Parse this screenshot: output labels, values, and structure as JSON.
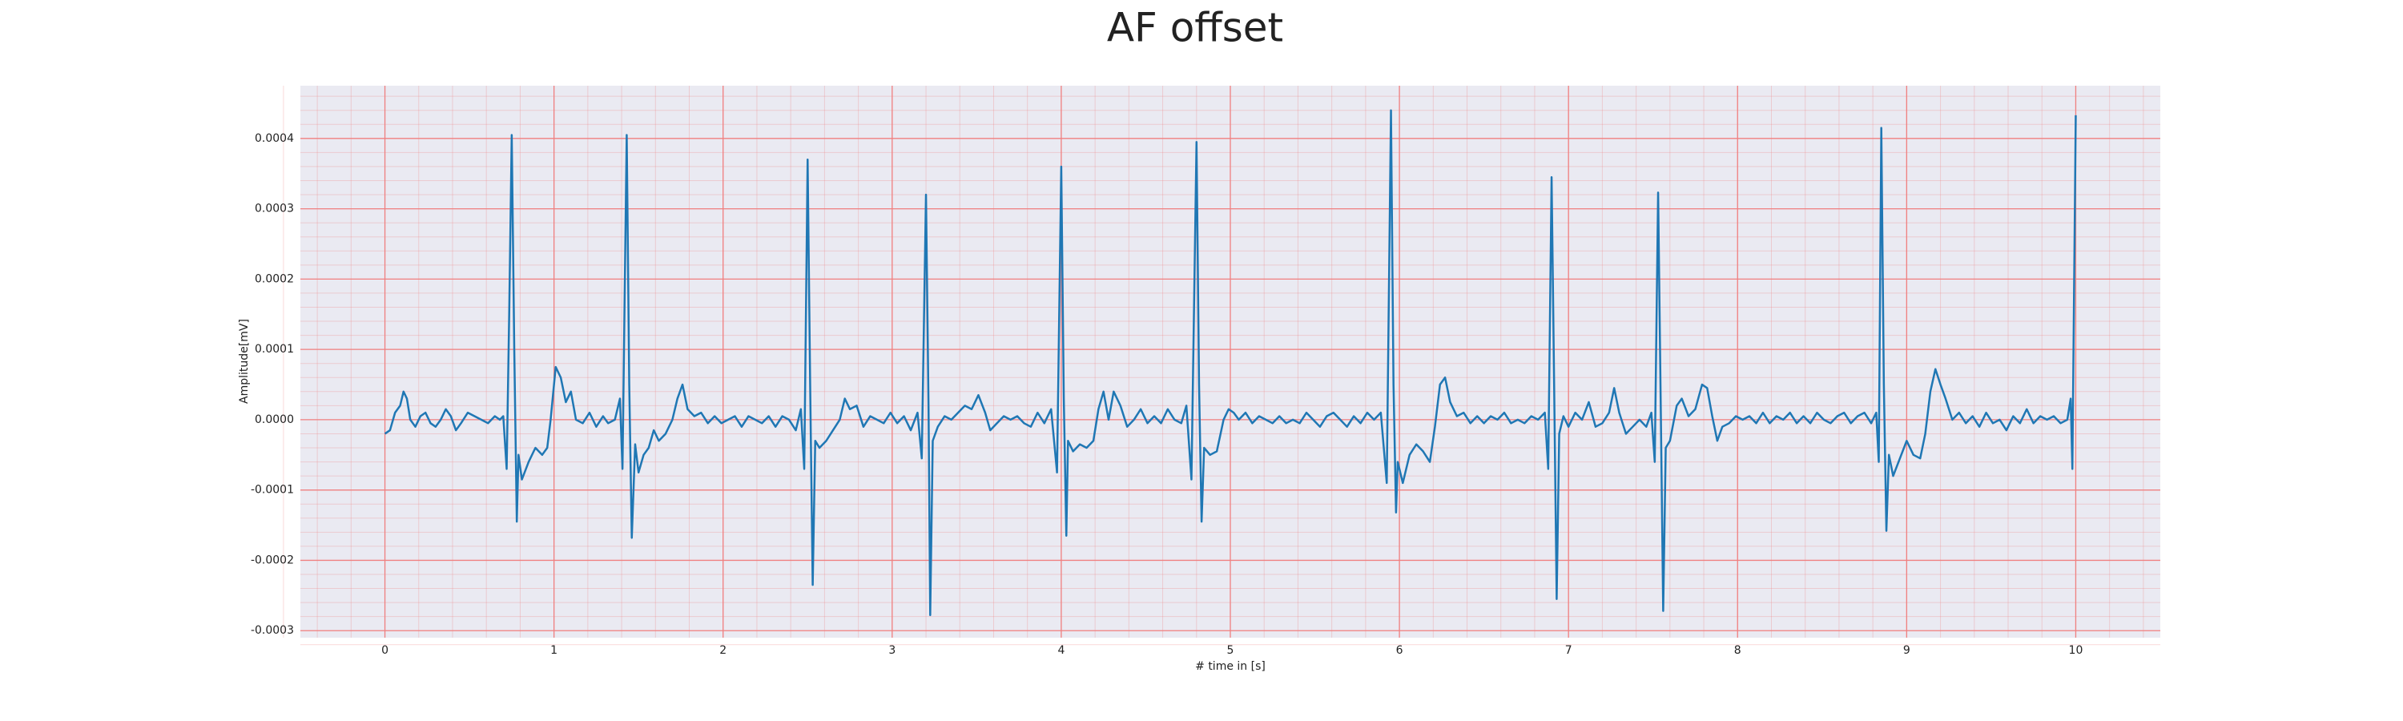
{
  "chart_data": {
    "type": "line",
    "title": "AF offset",
    "xlabel": "# time in [s]",
    "ylabel": "Amplitude[mV]",
    "color": "#1f77b4",
    "background": "#eaeaf2",
    "grid": true,
    "grid_color": "#f08080",
    "minor_grid": true,
    "xlim": [
      -0.5,
      10.5
    ],
    "xticks": [
      0,
      1,
      2,
      3,
      4,
      5,
      6,
      7,
      8,
      9,
      10
    ],
    "ylim": [
      -0.00031,
      0.000475
    ],
    "yticks": [
      -0.0003,
      -0.0002,
      -0.0001,
      {
        "value": 0,
        "label": "0.0000"
      },
      0.0001,
      0.0002,
      0.0003,
      0.0004
    ],
    "x": [
      0.0,
      0.03,
      0.06,
      0.09,
      0.11,
      0.13,
      0.15,
      0.18,
      0.21,
      0.24,
      0.27,
      0.3,
      0.33,
      0.36,
      0.39,
      0.42,
      0.45,
      0.49,
      0.53,
      0.57,
      0.61,
      0.65,
      0.68,
      0.7,
      0.72,
      0.735,
      0.75,
      0.765,
      0.78,
      0.79,
      0.81,
      0.85,
      0.89,
      0.93,
      0.96,
      0.98,
      1.01,
      1.04,
      1.07,
      1.1,
      1.13,
      1.17,
      1.21,
      1.25,
      1.29,
      1.32,
      1.36,
      1.39,
      1.405,
      1.43,
      1.445,
      1.46,
      1.48,
      1.5,
      1.53,
      1.56,
      1.59,
      1.62,
      1.66,
      1.7,
      1.73,
      1.76,
      1.79,
      1.83,
      1.87,
      1.91,
      1.95,
      1.99,
      2.03,
      2.07,
      2.11,
      2.15,
      2.19,
      2.23,
      2.27,
      2.31,
      2.35,
      2.39,
      2.43,
      2.46,
      2.48,
      2.5,
      2.515,
      2.53,
      2.545,
      2.57,
      2.61,
      2.65,
      2.69,
      2.72,
      2.75,
      2.79,
      2.83,
      2.87,
      2.91,
      2.95,
      2.99,
      3.03,
      3.07,
      3.11,
      3.15,
      3.175,
      3.2,
      3.215,
      3.225,
      3.24,
      3.27,
      3.31,
      3.35,
      3.39,
      3.43,
      3.47,
      3.51,
      3.55,
      3.58,
      3.62,
      3.66,
      3.7,
      3.74,
      3.78,
      3.82,
      3.86,
      3.9,
      3.94,
      3.975,
      4.0,
      4.015,
      4.03,
      4.04,
      4.07,
      4.11,
      4.15,
      4.19,
      4.22,
      4.25,
      4.28,
      4.31,
      4.35,
      4.39,
      4.43,
      4.47,
      4.51,
      4.55,
      4.59,
      4.63,
      4.67,
      4.71,
      4.74,
      4.77,
      4.8,
      4.815,
      4.83,
      4.845,
      4.88,
      4.92,
      4.96,
      4.99,
      5.02,
      5.05,
      5.09,
      5.13,
      5.17,
      5.21,
      5.25,
      5.29,
      5.33,
      5.37,
      5.41,
      5.45,
      5.49,
      5.53,
      5.57,
      5.61,
      5.65,
      5.69,
      5.73,
      5.77,
      5.81,
      5.85,
      5.89,
      5.925,
      5.95,
      5.965,
      5.98,
      5.99,
      6.02,
      6.06,
      6.1,
      6.14,
      6.18,
      6.21,
      6.24,
      6.27,
      6.3,
      6.34,
      6.38,
      6.42,
      6.46,
      6.5,
      6.54,
      6.58,
      6.62,
      6.66,
      6.7,
      6.74,
      6.78,
      6.82,
      6.86,
      6.88,
      6.9,
      6.915,
      6.93,
      6.945,
      6.97,
      7.0,
      7.04,
      7.08,
      7.12,
      7.16,
      7.2,
      7.24,
      7.27,
      7.3,
      7.34,
      7.38,
      7.42,
      7.46,
      7.49,
      7.51,
      7.53,
      7.545,
      7.56,
      7.575,
      7.6,
      7.64,
      7.67,
      7.71,
      7.75,
      7.79,
      7.82,
      7.85,
      7.88,
      7.91,
      7.95,
      7.99,
      8.03,
      8.07,
      8.11,
      8.15,
      8.19,
      8.23,
      8.27,
      8.31,
      8.35,
      8.39,
      8.43,
      8.47,
      8.51,
      8.55,
      8.59,
      8.63,
      8.67,
      8.71,
      8.75,
      8.79,
      8.82,
      8.835,
      8.85,
      8.865,
      8.88,
      8.895,
      8.92,
      8.96,
      9.0,
      9.04,
      9.08,
      9.11,
      9.14,
      9.17,
      9.2,
      9.23,
      9.27,
      9.31,
      9.35,
      9.39,
      9.43,
      9.47,
      9.51,
      9.55,
      9.59,
      9.63,
      9.67,
      9.71,
      9.75,
      9.79,
      9.83,
      9.87,
      9.91,
      9.95,
      9.97,
      9.98,
      10.0
    ],
    "values": [
      -2e-05,
      -1.5e-05,
      1e-05,
      2e-05,
      4e-05,
      3e-05,
      0,
      -1e-05,
      5e-06,
      1e-05,
      -5e-06,
      -1e-05,
      0,
      1.5e-05,
      5e-06,
      -1.5e-05,
      -5e-06,
      1e-05,
      5e-06,
      0,
      -5e-06,
      5e-06,
      0,
      5e-06,
      -7e-05,
      0.00015,
      0.000405,
      0.0001,
      -0.000145,
      -5e-05,
      -8.5e-05,
      -6e-05,
      -4e-05,
      -5e-05,
      -4e-05,
      0,
      7.5e-05,
      6e-05,
      2.5e-05,
      4e-05,
      0,
      -5e-06,
      1e-05,
      -1e-05,
      5e-06,
      -5e-06,
      0,
      3e-05,
      -7e-05,
      0.000405,
      5e-05,
      -0.000168,
      -3.5e-05,
      -7.5e-05,
      -5e-05,
      -4e-05,
      -1.5e-05,
      -3e-05,
      -2e-05,
      0,
      3e-05,
      5e-05,
      1.5e-05,
      5e-06,
      1e-05,
      -5e-06,
      5e-06,
      -5e-06,
      0,
      5e-06,
      -1e-05,
      5e-06,
      0,
      -5e-06,
      5e-06,
      -1e-05,
      5e-06,
      0,
      -1.5e-05,
      1.5e-05,
      -7e-05,
      0.00037,
      5e-05,
      -0.000235,
      -3e-05,
      -4e-05,
      -3e-05,
      -1.5e-05,
      0,
      3e-05,
      1.5e-05,
      2e-05,
      -1e-05,
      5e-06,
      0,
      -5e-06,
      1e-05,
      -5e-06,
      5e-06,
      -1.5e-05,
      1e-05,
      -5.5e-05,
      0.00032,
      2e-05,
      -0.000278,
      -3e-05,
      -1e-05,
      5e-06,
      0,
      1e-05,
      2e-05,
      1.5e-05,
      3.5e-05,
      1e-05,
      -1.5e-05,
      -5e-06,
      5e-06,
      0,
      5e-06,
      -5e-06,
      -1e-05,
      1e-05,
      -5e-06,
      1.5e-05,
      -7.5e-05,
      0.00036,
      3e-05,
      -0.000165,
      -3e-05,
      -4.5e-05,
      -3.5e-05,
      -4e-05,
      -3e-05,
      1.5e-05,
      4e-05,
      0,
      4e-05,
      2e-05,
      -1e-05,
      0,
      1.5e-05,
      -5e-06,
      5e-06,
      -5e-06,
      1.5e-05,
      0,
      -5e-06,
      2e-05,
      -8.5e-05,
      0.000395,
      5e-05,
      -0.000145,
      -4e-05,
      -5e-05,
      -4.5e-05,
      0,
      1.5e-05,
      1e-05,
      0,
      1e-05,
      -5e-06,
      5e-06,
      0,
      -5e-06,
      5e-06,
      -5e-06,
      0,
      -5e-06,
      1e-05,
      0,
      -1e-05,
      5e-06,
      1e-05,
      0,
      -1e-05,
      5e-06,
      -5e-06,
      1e-05,
      0,
      1e-05,
      -9e-05,
      0.00044,
      5e-05,
      -0.000132,
      -6e-05,
      -9e-05,
      -5e-05,
      -3.5e-05,
      -4.5e-05,
      -6e-05,
      -1e-05,
      5e-05,
      6e-05,
      2.5e-05,
      5e-06,
      1e-05,
      -5e-06,
      5e-06,
      -5e-06,
      5e-06,
      0,
      1e-05,
      -5e-06,
      0,
      -5e-06,
      5e-06,
      0,
      1e-05,
      -7e-05,
      0.000345,
      5e-05,
      -0.000255,
      -2e-05,
      5e-06,
      -1e-05,
      1e-05,
      0,
      2.5e-05,
      -1e-05,
      -5e-06,
      1e-05,
      4.5e-05,
      1e-05,
      -2e-05,
      -1e-05,
      0,
      -1e-05,
      1e-05,
      -6e-05,
      0.000323,
      3e-05,
      -0.000272,
      -4e-05,
      -3e-05,
      2e-05,
      3e-05,
      5e-06,
      1.5e-05,
      5e-05,
      4.5e-05,
      5e-06,
      -3e-05,
      -1e-05,
      -5e-06,
      5e-06,
      0,
      5e-06,
      -5e-06,
      1e-05,
      -5e-06,
      5e-06,
      0,
      1e-05,
      -5e-06,
      5e-06,
      -5e-06,
      1e-05,
      0,
      -5e-06,
      5e-06,
      1e-05,
      -5e-06,
      5e-06,
      1e-05,
      -5e-06,
      1e-05,
      -6e-05,
      0.000415,
      5e-05,
      -0.000158,
      -5e-05,
      -8e-05,
      -5.5e-05,
      -3e-05,
      -5e-05,
      -5.5e-05,
      -2e-05,
      4e-05,
      7.2e-05,
      5e-05,
      3e-05,
      0,
      1e-05,
      -5e-06,
      5e-06,
      -1e-05,
      1e-05,
      -5e-06,
      0,
      -1.5e-05,
      5e-06,
      -5e-06,
      1.5e-05,
      -5e-06,
      5e-06,
      0,
      5e-06,
      -5e-06,
      0,
      3e-05,
      -7e-05,
      0.000433
    ]
  }
}
